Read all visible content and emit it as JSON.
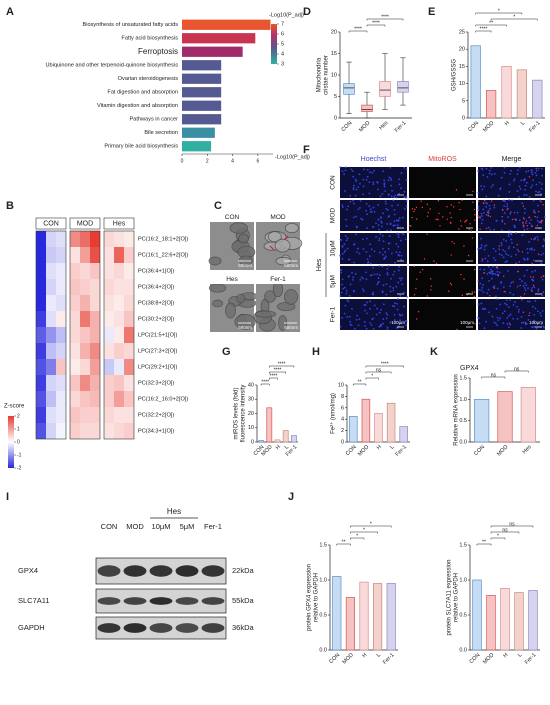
{
  "panel_labels": [
    "A",
    "B",
    "C",
    "D",
    "E",
    "F",
    "G",
    "H",
    "I",
    "J",
    "K"
  ],
  "chart_data": [
    {
      "type": "barh",
      "categories": [
        "Biosynthesis of unsaturated fatty acids",
        "Fatty acid biosynthesis",
        "Ferroptosis",
        "Ubiquinone and other terpenoid-quinone biosynthesis",
        "Ovarian steroidogenesis",
        "Fat digestion and absorption",
        "Vitamin digestion and absorption",
        "Pathways in cancer",
        "Bile secretion",
        "Primary bile acid biosynthesis"
      ],
      "values": [
        7.0,
        5.8,
        4.8,
        3.1,
        3.1,
        3.1,
        3.1,
        3.1,
        2.6,
        2.3
      ],
      "colors": [
        "#e8552f",
        "#c8344f",
        "#a02a6a",
        "#565a92",
        "#565a92",
        "#565a92",
        "#565a92",
        "#565a92",
        "#3b8fa3",
        "#2fb0a0"
      ],
      "label_colors": [
        "#222222",
        "#222222",
        "#e0302a",
        "#222222",
        "#222222",
        "#222222",
        "#222222",
        "#222222",
        "#222222",
        "#222222"
      ],
      "xlim": [
        0,
        7.2
      ],
      "xticks": [
        0,
        2,
        4,
        6
      ],
      "xlabel": "-Log10(P_adj)",
      "legend_title": "-Log10(P_adj)",
      "legend_ticks": [
        7,
        6,
        5,
        4,
        3
      ]
    },
    {
      "type": "heatmap",
      "groups": [
        "CON",
        "MOD",
        "Hes"
      ],
      "rows": [
        "PC(16:2_18:1+2[O])",
        "PC(16:1_22:6+2[O])",
        "PC(36:4+1[O])",
        "PC(36:4+2[O])",
        "PC(38:8+2[O])",
        "PC(30:2+2[O])",
        "LPC(21:5+1[O])",
        "LPC(27:3+2[O])",
        "LPC(29:2+1[O])",
        "PC(32:3+2[O])",
        "PC(16:2_16:0+2[O])",
        "PC(32:2+2[O])",
        "PC(34:3+1[O])"
      ],
      "values": [
        [
          -2,
          -0.4,
          -0.3,
          1.2,
          1.5,
          2,
          0.4,
          0.3,
          0.2
        ],
        [
          -2,
          -0.5,
          -0.4,
          0.3,
          1.0,
          1.8,
          0.3,
          1.6,
          0.5
        ],
        [
          -2,
          -0.3,
          -0.2,
          0.5,
          0.4,
          0.6,
          0.3,
          0.4,
          0.2
        ],
        [
          -2,
          -0.4,
          -0.2,
          0.6,
          0.5,
          0.4,
          0.4,
          0.3,
          0.3
        ],
        [
          -2,
          -0.2,
          -0.3,
          0.5,
          0.8,
          0.4,
          0.3,
          0.2,
          0.4
        ],
        [
          -1.8,
          -0.3,
          0.2,
          0.4,
          1.4,
          0.8,
          0.2,
          0.3,
          0.6
        ],
        [
          -1.5,
          -1,
          -0.6,
          0.4,
          0.6,
          0.8,
          -0.2,
          0.2,
          1.4
        ],
        [
          -1.8,
          -0.6,
          -0.4,
          0.3,
          0.8,
          1.2,
          0.3,
          0.5,
          0.4
        ],
        [
          -1.6,
          -1.2,
          0.6,
          0.2,
          0.4,
          1.0,
          -0.5,
          -0.2,
          1.2
        ],
        [
          -1.8,
          -0.4,
          -0.3,
          0.6,
          1.2,
          0.8,
          0.5,
          0.6,
          0.3
        ],
        [
          -1.6,
          -0.6,
          -0.2,
          0.4,
          0.6,
          0.7,
          0.5,
          1.0,
          0.6
        ],
        [
          -1.8,
          -0.3,
          -0.2,
          0.6,
          0.5,
          0.5,
          0.4,
          0.3,
          0.3
        ],
        [
          -1.6,
          -0.4,
          -0.1,
          0.5,
          0.4,
          0.4,
          0.3,
          0.4,
          0.5
        ]
      ],
      "zlim": [
        -2,
        2
      ],
      "zticks": [
        2,
        1,
        0,
        -1,
        -2
      ],
      "legend_title": "Z-score"
    },
    {
      "type": "box",
      "categories": [
        "CON",
        "MOD",
        "Hes",
        "Fer-1"
      ],
      "whisker_low": [
        1,
        0,
        2,
        3
      ],
      "q1": [
        5.5,
        1.5,
        5,
        6
      ],
      "median": [
        7,
        2,
        6.5,
        7
      ],
      "q3": [
        8,
        3,
        8.5,
        8.5
      ],
      "whisker_high": [
        13,
        6,
        15,
        14
      ],
      "colors": [
        "#c6dcf2",
        "#f6c3c3",
        "#f9dade",
        "#d6d3ee"
      ],
      "edge_colors": [
        "#5b8fd0",
        "#d9534f",
        "#d98a8a",
        "#8a86c4"
      ],
      "ylim": [
        0,
        20
      ],
      "yticks": [
        0,
        5,
        10,
        15,
        20
      ],
      "ylabel": [
        "Mitochondria",
        "cristae number"
      ],
      "annotations": [
        "****",
        "****",
        "****"
      ]
    },
    {
      "type": "bar",
      "categories": [
        "CON",
        "MOD",
        "H",
        "L",
        "Fer-1"
      ],
      "values": [
        21,
        8,
        15,
        14,
        11
      ],
      "colors": [
        "#c6dcf2",
        "#f6c3c3",
        "#f9dada",
        "#f4d2cc",
        "#d6d3ee"
      ],
      "edge_colors": [
        "#5b8fd0",
        "#d9534f",
        "#d98a8a",
        "#c9877a",
        "#8a86c4"
      ],
      "ylim": [
        0,
        25
      ],
      "yticks": [
        0,
        5,
        10,
        15,
        20,
        25
      ],
      "ylabel": [
        "GSH/GSSG"
      ],
      "annotations": [
        "****",
        "**",
        "*",
        "*"
      ]
    },
    {
      "type": "bar",
      "categories": [
        "CON",
        "MOD",
        "H",
        "L",
        "Fer-1"
      ],
      "values": [
        1,
        24,
        1.5,
        8,
        4.5
      ],
      "colors": [
        "#c6dcf2",
        "#f6c3c3",
        "#f9dada",
        "#f4d2cc",
        "#d6d3ee"
      ],
      "edge_colors": [
        "#5b8fd0",
        "#d9534f",
        "#d98a8a",
        "#c9877a",
        "#8a86c4"
      ],
      "ylim": [
        0,
        40
      ],
      "yticks": [
        0,
        10,
        20,
        30,
        40
      ],
      "ylabel": [
        "mtROS levels (fold)",
        "fluorescence intensity"
      ],
      "annotations": [
        "****",
        "****",
        "****",
        "****"
      ]
    },
    {
      "type": "bar",
      "categories": [
        "CON",
        "MOD",
        "H",
        "L",
        "Fer-1"
      ],
      "values": [
        4.5,
        7.5,
        5,
        6.8,
        2.7
      ],
      "colors": [
        "#c6dcf2",
        "#f6c3c3",
        "#f9dada",
        "#f4d2cc",
        "#d6d3ee"
      ],
      "edge_colors": [
        "#5b8fd0",
        "#d9534f",
        "#d98a8a",
        "#c9877a",
        "#8a86c4"
      ],
      "ylim": [
        0,
        10
      ],
      "yticks": [
        0,
        2,
        4,
        6,
        8,
        10
      ],
      "ylabel": [
        "Fe²⁺ (nmol/mg)"
      ],
      "annotations": [
        "**",
        "*",
        "ns",
        "****"
      ]
    },
    {
      "type": "bar",
      "title": "GPX4",
      "categories": [
        "CON",
        "MOD",
        "Hes"
      ],
      "values": [
        1.0,
        1.18,
        1.28
      ],
      "colors": [
        "#c6dcf2",
        "#f6c3c3",
        "#f9dada"
      ],
      "edge_colors": [
        "#5b8fd0",
        "#d9534f",
        "#d98a8a"
      ],
      "ylim": [
        0,
        1.5
      ],
      "yticks": [
        {
          "value": 0,
          "label": "0.0"
        },
        0.5,
        {
          "value": 1,
          "label": "1.0"
        },
        1.5
      ],
      "ylabel": [
        "Relative mRNA expression"
      ],
      "annotations": [
        "ns",
        "ns"
      ]
    },
    {
      "type": "bar",
      "categories": [
        "CON",
        "MOD",
        "H",
        "L",
        "Fer-1"
      ],
      "values": [
        1.05,
        0.75,
        0.97,
        0.95,
        0.95
      ],
      "colors": [
        "#c6dcf2",
        "#f6c3c3",
        "#f9dada",
        "#f4d2cc",
        "#d6d3ee"
      ],
      "edge_colors": [
        "#5b8fd0",
        "#d9534f",
        "#d98a8a",
        "#c9877a",
        "#8a86c4"
      ],
      "ylim": [
        0,
        1.5
      ],
      "yticks": [
        {
          "value": 0,
          "label": "0.0"
        },
        0.5,
        {
          "value": 1,
          "label": "1.0"
        },
        1.5
      ],
      "ylabel": [
        "protein GPX4 expression",
        "relative to GAPDH"
      ],
      "annotations": [
        "**",
        "*",
        "*",
        "*"
      ]
    },
    {
      "type": "bar",
      "categories": [
        "CON",
        "MOD",
        "H",
        "L",
        "Fer-1"
      ],
      "values": [
        1.0,
        0.78,
        0.88,
        0.82,
        0.85
      ],
      "colors": [
        "#c6dcf2",
        "#f6c3c3",
        "#f9dada",
        "#f4d2cc",
        "#d6d3ee"
      ],
      "edge_colors": [
        "#5b8fd0",
        "#d9534f",
        "#d98a8a",
        "#c9877a",
        "#8a86c4"
      ],
      "ylim": [
        0,
        1.5
      ],
      "yticks": [
        {
          "value": 0,
          "label": "0.0"
        },
        0.5,
        {
          "value": 1,
          "label": "1.0"
        },
        1.5
      ],
      "ylabel": [
        "protein SLC7A11 expression",
        "relative to GAPDH"
      ],
      "annotations": [
        "**",
        "*",
        "ns",
        "ns"
      ]
    }
  ],
  "panel_c": {
    "images": [
      "CON",
      "MOD",
      "Hes",
      "Fer-1"
    ],
    "scale_bar": "500nm"
  },
  "panel_f": {
    "columns": [
      "Hoechst",
      "MitoROS",
      "Merge"
    ],
    "rows": [
      "CON",
      "MOD",
      "10μM",
      "5μM",
      "Fer-1"
    ],
    "group": "Hes",
    "scale_bar": "100μm"
  },
  "panel_i": {
    "group": "Hes",
    "lanes": [
      "CON",
      "MOD",
      "10μM",
      "5μM",
      "Fer-1"
    ],
    "rows": [
      {
        "name": "GPX4",
        "size": "22kDa"
      },
      {
        "name": "SLC7A11",
        "size": "55kDa"
      },
      {
        "name": "GAPDH",
        "size": "36kDa"
      }
    ]
  }
}
